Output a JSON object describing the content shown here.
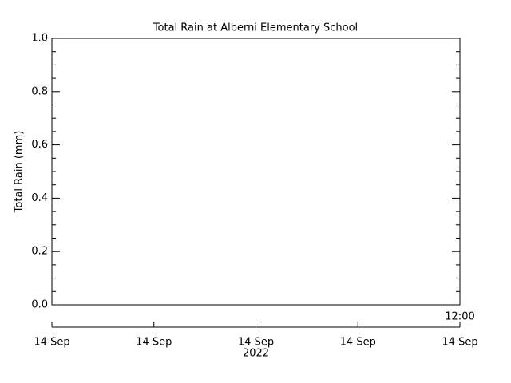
{
  "chart_data": {
    "type": "line",
    "title": "Total Rain at Alberni Elementary School",
    "y_label": "Total Rain (mm)",
    "ylim": [
      0,
      1
    ],
    "yticks": [
      {
        "value": 0,
        "label": "0.0"
      },
      {
        "value": 0.2,
        "label": "0.2"
      },
      {
        "value": 0.4,
        "label": "0.4"
      },
      {
        "value": 0.6,
        "label": "0.6"
      },
      {
        "value": 0.8,
        "label": "0.8"
      },
      {
        "value": 1,
        "label": "1.0"
      }
    ],
    "x_tick_labels": [
      "14 Sep",
      "14 Sep",
      "14 Sep",
      "14 Sep",
      "14 Sep"
    ],
    "x_year_label": "2022",
    "x_end_label": "12:00",
    "series": []
  }
}
